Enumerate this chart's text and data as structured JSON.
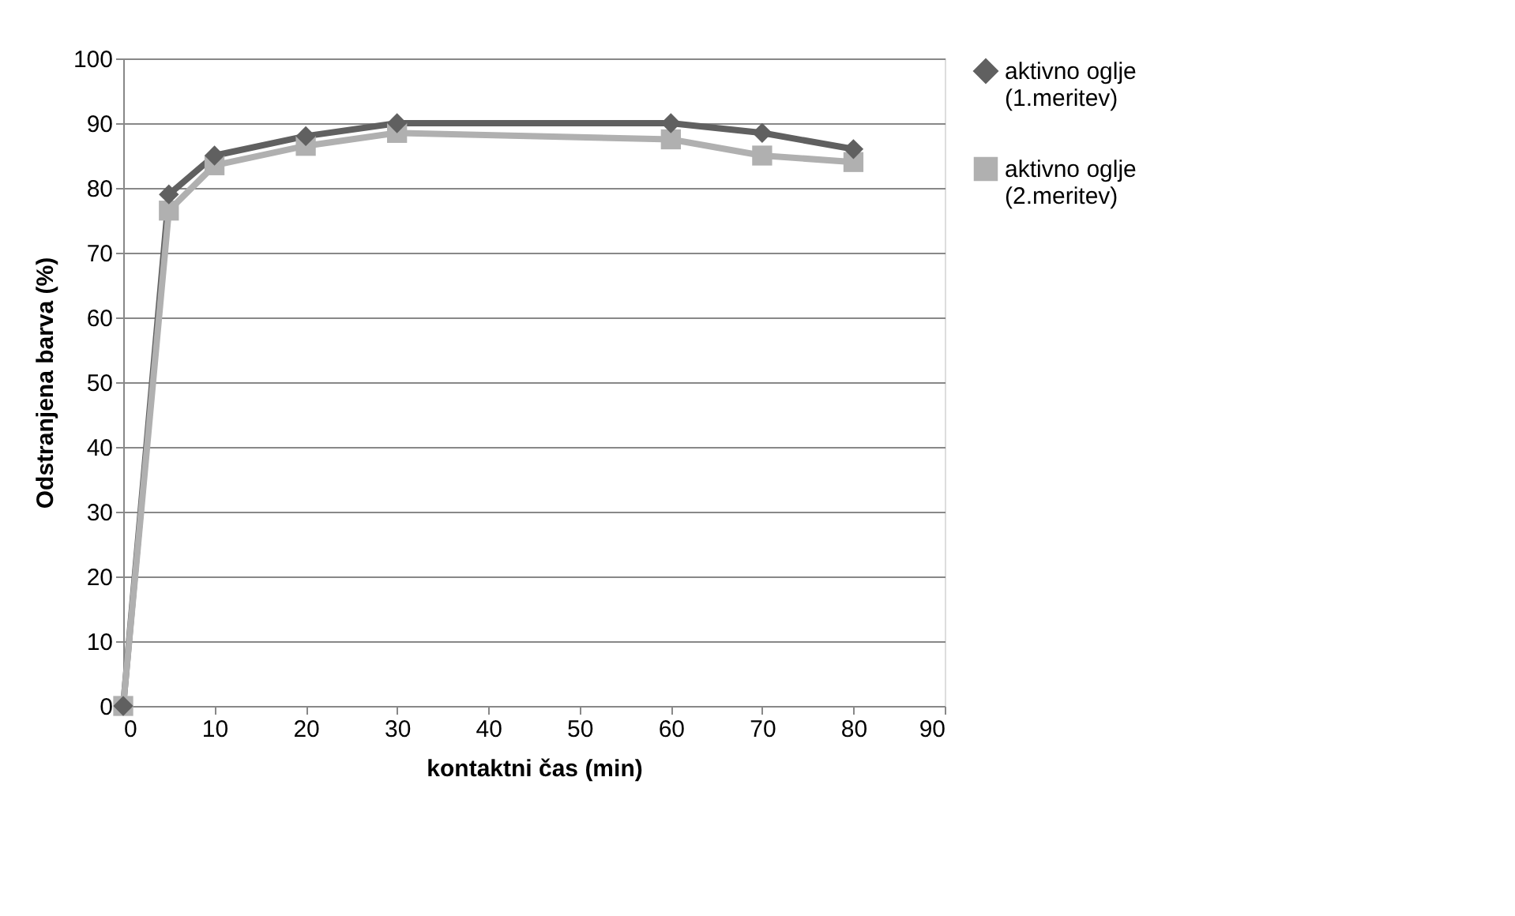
{
  "chart_data": {
    "type": "line",
    "xlabel": "kontaktni čas (min)",
    "ylabel": "Odstranjena barva  (%)",
    "x": [
      0,
      5,
      10,
      20,
      30,
      60,
      70,
      80
    ],
    "series": [
      {
        "name": "aktivno oglje (1.meritev)",
        "color": "#606060",
        "marker": "diamond",
        "values": [
          0,
          79,
          85,
          88,
          90,
          90,
          88.5,
          86
        ]
      },
      {
        "name": "aktivno oglje (2.meritev)",
        "color": "#b0b0b0",
        "marker": "square",
        "values": [
          0,
          76.5,
          83.5,
          86.5,
          88.5,
          87.5,
          85,
          84
        ]
      }
    ],
    "xlim": [
      0,
      90
    ],
    "xticks": [
      0,
      10,
      20,
      30,
      40,
      50,
      60,
      70,
      80,
      90
    ],
    "ylim": [
      0,
      100
    ],
    "yticks": [
      0,
      10,
      20,
      30,
      40,
      50,
      60,
      70,
      80,
      90,
      100
    ],
    "grid": "y",
    "legend": "right",
    "line_style": "solid"
  }
}
